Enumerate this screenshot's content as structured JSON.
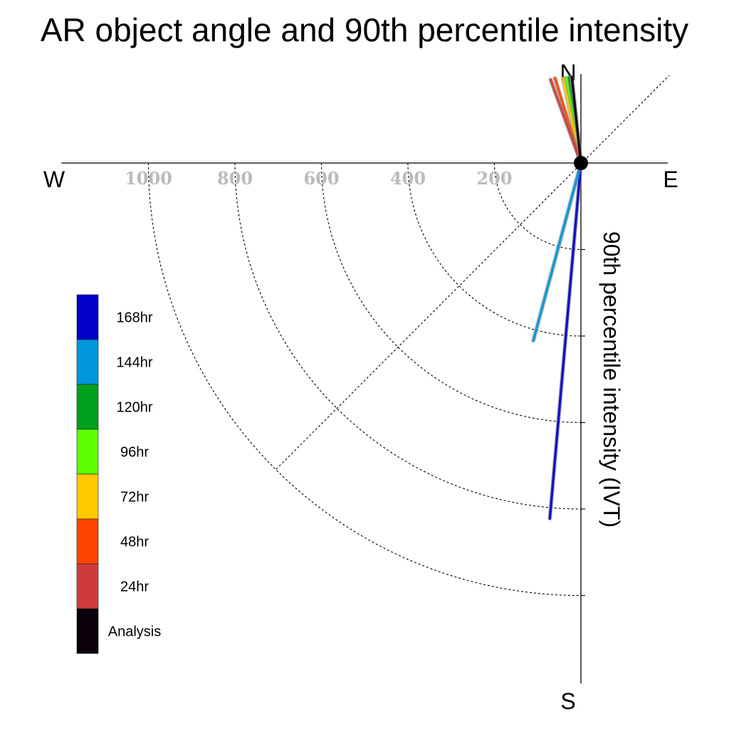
{
  "chart_data": {
    "type": "polar-vector",
    "title": "AR object angle and 90th percentile intensity",
    "ylabel": "90th percentile intensity (IVT)",
    "angle_unit": "degrees clockwise from N",
    "compass": {
      "n": "N",
      "e": "E",
      "s": "S",
      "w": "W"
    },
    "r_ticks": [
      200,
      400,
      600,
      800,
      1000
    ],
    "r_tick_labels": [
      "200",
      "400",
      "600",
      "800",
      "1000"
    ],
    "rlim": [
      0,
      1000
    ],
    "grid": true,
    "legend_placement": "left",
    "series": [
      {
        "name": "168hr",
        "color": "#0000c8",
        "angle": 185,
        "intensity": 825
      },
      {
        "name": "144hr",
        "color": "#0096dc",
        "angle": 195,
        "intensity": 425
      },
      {
        "name": "120hr",
        "color": "#00a01e",
        "angle": 352,
        "intensity": 200
      },
      {
        "name": "96hr",
        "color": "#5aff00",
        "angle": 350,
        "intensity": 200
      },
      {
        "name": "72hr",
        "color": "#ffc800",
        "angle": 348,
        "intensity": 200
      },
      {
        "name": "48hr",
        "color": "#ff4600",
        "angle": 343,
        "intensity": 205
      },
      {
        "name": "24hr",
        "color": "#cd3c3c",
        "angle": 340,
        "intensity": 205
      },
      {
        "name": "Analysis",
        "color": "#0a000a",
        "angle": 354,
        "intensity": 200
      }
    ]
  }
}
